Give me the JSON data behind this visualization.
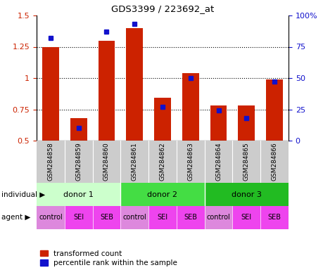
{
  "title": "GDS3399 / 223692_at",
  "samples": [
    "GSM284858",
    "GSM284859",
    "GSM284860",
    "GSM284861",
    "GSM284862",
    "GSM284863",
    "GSM284864",
    "GSM284865",
    "GSM284866"
  ],
  "red_values": [
    1.25,
    0.68,
    1.3,
    1.4,
    0.84,
    1.04,
    0.78,
    0.78,
    0.99
  ],
  "blue_pct": [
    82,
    10,
    87,
    93,
    27,
    50,
    24,
    18,
    47
  ],
  "ylim": [
    0.5,
    1.5
  ],
  "yticks_left": [
    0.5,
    0.75,
    1.0,
    1.25,
    1.5
  ],
  "yticks_right": [
    0,
    25,
    50,
    75,
    100
  ],
  "ytick_labels_left": [
    "0.5",
    "0.75",
    "1",
    "1.25",
    "1.5"
  ],
  "ytick_labels_right": [
    "0",
    "25",
    "50",
    "75",
    "100%"
  ],
  "bar_color": "#cc2200",
  "blue_color": "#1111cc",
  "individual_colors": [
    "#ccffcc",
    "#44dd44",
    "#22bb22"
  ],
  "agent_color_control": "#dd88dd",
  "agent_color_sei_seb": "#ee44ee",
  "individual_row_label": "individual",
  "agent_row_label": "agent",
  "legend_red": "transformed count",
  "legend_blue": "percentile rank within the sample",
  "sample_bg": "#cccccc",
  "background_main": "#ffffff"
}
